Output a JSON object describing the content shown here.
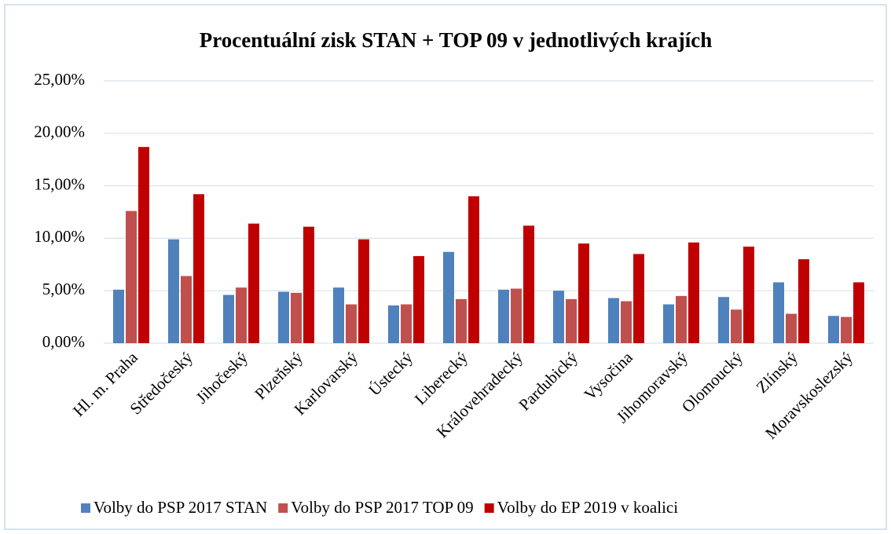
{
  "chart_data": {
    "type": "bar",
    "title": "Procentuální zisk STAN + TOP 09 v jednotlivých krajích",
    "categories": [
      "Hl. m. Praha",
      "Středočeský",
      "Jihočeský",
      "Plzeňský",
      "Karlovarský",
      "Ústecký",
      "Liberecký",
      "Královehradecký",
      "Pardubický",
      "Vysočina",
      "Jihomoravský",
      "Olomoucký",
      "Zlínský",
      "Moravskoslezský"
    ],
    "series": [
      {
        "name": "Volby do PSP 2017 STAN",
        "color": "#4f81bd",
        "values": [
          5.1,
          9.9,
          4.6,
          4.9,
          5.3,
          3.6,
          8.7,
          5.1,
          5.0,
          4.3,
          3.7,
          4.4,
          5.8,
          2.6
        ]
      },
      {
        "name": "Volby do PSP 2017 TOP 09",
        "color": "#c0504d",
        "values": [
          12.6,
          6.4,
          5.3,
          4.8,
          3.7,
          3.7,
          4.2,
          5.2,
          4.2,
          4.0,
          4.5,
          3.2,
          2.8,
          2.5
        ]
      },
      {
        "name": "Volby do EP 2019 v koalici",
        "color": "#c00000",
        "values": [
          18.7,
          14.2,
          11.4,
          11.1,
          9.9,
          8.3,
          14.0,
          11.2,
          9.5,
          8.5,
          9.6,
          9.2,
          8.0,
          5.8
        ]
      }
    ],
    "ylim": [
      0,
      25
    ],
    "yticks": [
      {
        "value": 0,
        "label": "0,00%"
      },
      {
        "value": 5,
        "label": "5,00%"
      },
      {
        "value": 10,
        "label": "10,00%"
      },
      {
        "value": 15,
        "label": "15,00%"
      },
      {
        "value": 20,
        "label": "20,00%"
      },
      {
        "value": 25,
        "label": "25,00%"
      }
    ],
    "grid": true,
    "legend": "bottom"
  }
}
